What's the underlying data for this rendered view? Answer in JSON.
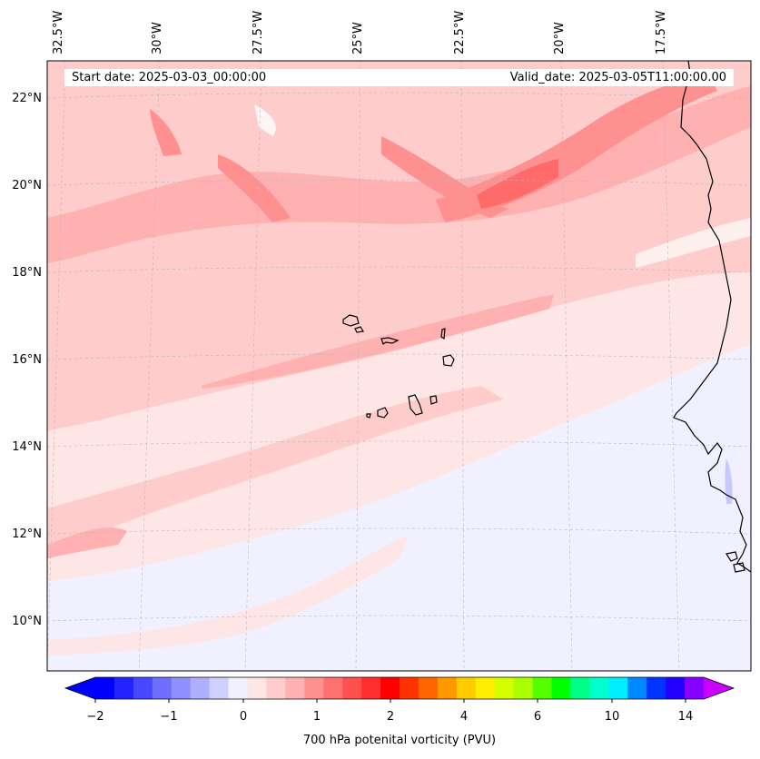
{
  "header": {
    "start_date": "Start date: 2025-03-03_00:00:00",
    "valid_date": "Valid_date: 2025-03-05T11:00:00.00"
  },
  "longitude_labels": [
    "32.5°W",
    "30°W",
    "27.5°W",
    "25°W",
    "22.5°W",
    "20°W",
    "17.5°W"
  ],
  "latitude_labels": [
    "22°N",
    "20°N",
    "18°N",
    "16°N",
    "14°N",
    "12°N",
    "10°N"
  ],
  "colorbar": {
    "label": "700 hPa potenital vorticity (PVU)",
    "tick_labels": [
      "−2",
      "−1",
      "0",
      "1",
      "2",
      "4",
      "6",
      "10",
      "14"
    ],
    "colors": [
      "#0000ff",
      "#2222ff",
      "#4848ff",
      "#6e6eff",
      "#8f8fff",
      "#afafff",
      "#d0d0ff",
      "#f0f0ff",
      "#ffe6e6",
      "#ffcccc",
      "#ffb0b0",
      "#ff9090",
      "#ff7070",
      "#ff5050",
      "#ff2d2d",
      "#ff0000",
      "#ff3300",
      "#ff6600",
      "#ff9900",
      "#ffcc00",
      "#ffee00",
      "#d4ff00",
      "#aaff00",
      "#55ff00",
      "#00ff00",
      "#00ff88",
      "#00ffcc",
      "#00eeff",
      "#0088ff",
      "#0033ff",
      "#2200ff",
      "#8800ff"
    ],
    "extend_low_color": "#0000ff",
    "extend_high_color": "#cc00ff"
  },
  "colors": {
    "background_light": "#ffe6e6",
    "band_medium": "#ffcccc",
    "band_strong": "#ffb0b0",
    "band_stronger": "#ff9090",
    "band_peak": "#ff6a6a",
    "negative_light": "#f0f0ff",
    "coast": "#000000"
  }
}
